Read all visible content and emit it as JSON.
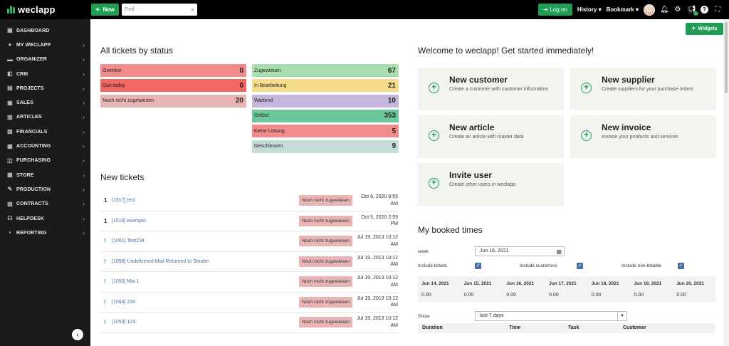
{
  "brand": {
    "name": "weclapp"
  },
  "topbar": {
    "new_label": "New",
    "find_placeholder": "Find",
    "logon_label": "Log on",
    "history_label": "History",
    "bookmark_label": "Bookmark",
    "notification_count": "1"
  },
  "sidebar": {
    "items": [
      {
        "label": "DASHBOARD",
        "icon": "dashboard-icon",
        "glyph": "▦",
        "chev": ""
      },
      {
        "label": "MY WECLAPP",
        "icon": "person-icon",
        "glyph": "●",
        "chev": "›"
      },
      {
        "label": "ORGANIZER",
        "icon": "organizer-icon",
        "glyph": "▬",
        "chev": "›"
      },
      {
        "label": "CRM",
        "icon": "crm-icon",
        "glyph": "◧",
        "chev": "›"
      },
      {
        "label": "PROJECTS",
        "icon": "projects-icon",
        "glyph": "▤",
        "chev": "›"
      },
      {
        "label": "SALES",
        "icon": "sales-icon",
        "glyph": "▣",
        "chev": "›"
      },
      {
        "label": "ARTICLES",
        "icon": "articles-icon",
        "glyph": "▥",
        "chev": "›"
      },
      {
        "label": "FINANCIALS",
        "icon": "financials-icon",
        "glyph": "▨",
        "chev": "›"
      },
      {
        "label": "ACCOUNTING",
        "icon": "accounting-icon",
        "glyph": "▦",
        "chev": "›"
      },
      {
        "label": "PURCHASING",
        "icon": "purchasing-icon",
        "glyph": "◫",
        "chev": "›"
      },
      {
        "label": "STORE",
        "icon": "store-icon",
        "glyph": "▩",
        "chev": "›"
      },
      {
        "label": "PRODUCTION",
        "icon": "production-icon",
        "glyph": "✎",
        "chev": "›"
      },
      {
        "label": "CONTRACTS",
        "icon": "contracts-icon",
        "glyph": "▧",
        "chev": "›"
      },
      {
        "label": "HELPDESK",
        "icon": "helpdesk-icon",
        "glyph": "☊",
        "chev": "›"
      },
      {
        "label": "REPORTING",
        "icon": "reporting-icon",
        "glyph": "▪",
        "chev": "›"
      }
    ]
  },
  "tickets_status": {
    "title": "All tickets by status",
    "left": [
      {
        "label": "Overdue",
        "count": "0",
        "color": "#f28b8b"
      },
      {
        "label": "Due today",
        "count": "0",
        "color": "#f2675f"
      },
      {
        "label": "Noch nicht zugewiesen",
        "count": "20",
        "color": "#e8b4b4"
      }
    ],
    "right": [
      {
        "label": "Zugewiesen",
        "count": "67",
        "color": "#a9dfb0"
      },
      {
        "label": "In Bearbeitung",
        "count": "21",
        "color": "#f7dc8b"
      },
      {
        "label": "Wartend",
        "count": "10",
        "color": "#c5b6dc"
      },
      {
        "label": "Gelöst",
        "count": "353",
        "color": "#6cc79a"
      },
      {
        "label": "Keine Lösung",
        "count": "5",
        "color": "#f28b8b"
      },
      {
        "label": "Geschlossen",
        "count": "9",
        "color": "#c7dcd6"
      }
    ]
  },
  "new_tickets": {
    "title": "New tickets",
    "rows": [
      {
        "prio": "1",
        "title": "[1517] test",
        "status": "Noch nicht zugewiesen",
        "date1": "Oct 6, 2020 9:55",
        "date2": "AM"
      },
      {
        "prio": "1",
        "title": "[1516] esempio",
        "status": "Noch nicht zugewiesen",
        "date1": "Oct 5, 2020 2:59",
        "date2": "PM"
      },
      {
        "prio": "!",
        "title": "[1061] Test234",
        "status": "Noch nicht zugewiesen",
        "date1": "Jul 19, 2013 10:12",
        "date2": "AM"
      },
      {
        "prio": "!",
        "title": "[1058] Undelivered Mail Returned to Sender",
        "status": "Noch nicht zugewiesen",
        "date1": "Jul 19, 2013 10:12",
        "date2": "AM"
      },
      {
        "prio": "!",
        "title": "[1055] Mai 1",
        "status": "Noch nicht zugewiesen",
        "date1": "Jul 19, 2013 10:12",
        "date2": "AM"
      },
      {
        "prio": "!",
        "title": "[1064] 234",
        "status": "Noch nicht zugewiesen",
        "date1": "Jul 19, 2013 10:12",
        "date2": "AM"
      },
      {
        "prio": "!",
        "title": "[1053] 123",
        "status": "Noch nicht zugewiesen",
        "date1": "Jul 19, 2013 10:12",
        "date2": "AM"
      }
    ]
  },
  "welcome": {
    "title": "Welcome to weclapp! Get started immediately!",
    "widgets_label": "Widgets",
    "cards": [
      {
        "title": "New customer",
        "desc": "Create a customer with customer information"
      },
      {
        "title": "New supplier",
        "desc": "Create suppliers for your purchase orders"
      },
      {
        "title": "New article",
        "desc": "Create an article with master data"
      },
      {
        "title": "New invoice",
        "desc": "Invoice your products and services"
      },
      {
        "title": "Invite user",
        "desc": "Create other users in weclapp"
      }
    ]
  },
  "booked_times": {
    "title": "My booked times",
    "week_label": "week",
    "week_value": "Jun 16, 2021",
    "include_tickets": "Include tickets",
    "include_customers": "Include customers",
    "include_nonbillable": "Include non-billable",
    "days": [
      {
        "date": "Jun 14, 2021",
        "value": "0.00"
      },
      {
        "date": "Jun 15, 2021",
        "value": "0.00"
      },
      {
        "date": "Jun 16, 2021",
        "value": "0.00"
      },
      {
        "date": "Jun 17, 2021",
        "value": "0.00"
      },
      {
        "date": "Jun 18, 2021",
        "value": "0.00"
      },
      {
        "date": "Jun 19, 2021",
        "value": "0.00"
      },
      {
        "date": "Jun 20, 2021",
        "value": "0.00"
      }
    ],
    "show_label": "Show",
    "show_value": "last 7 days",
    "columns": [
      "Duration",
      "Time",
      "Task",
      "Customer"
    ]
  }
}
